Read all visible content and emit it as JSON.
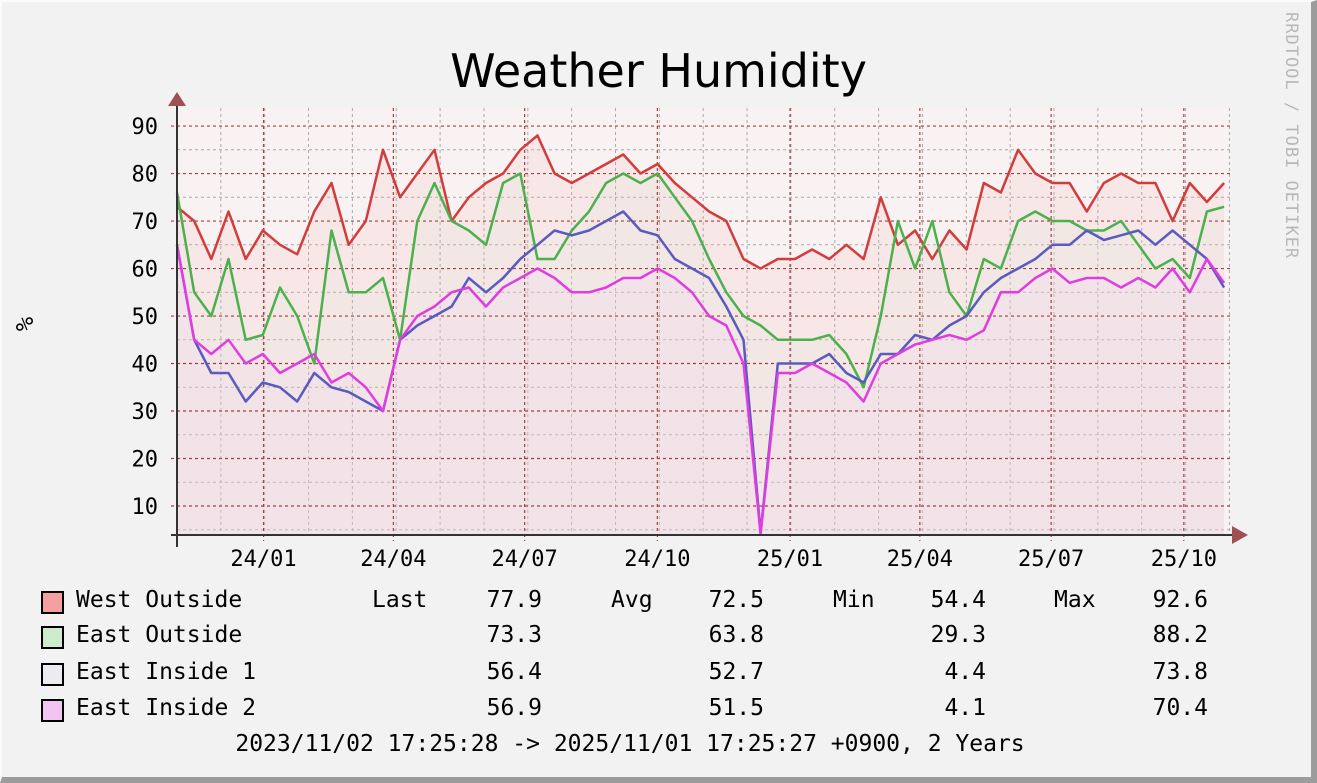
{
  "chart_data": {
    "type": "line",
    "title": "Weather Humidity",
    "ylabel": "%",
    "xlabel": "",
    "watermark": "RRDTOOL / TOBI OETIKER",
    "ylim": [
      3.9,
      93.8
    ],
    "yticks": [
      10,
      20,
      30,
      40,
      50,
      60,
      70,
      80,
      90
    ],
    "ytick_labels": [
      "10",
      "20",
      "30",
      "40",
      "50",
      "60",
      "70",
      "80",
      "90"
    ],
    "x_range_days": [
      0,
      730
    ],
    "xticks_days": [
      60,
      150,
      241,
      333,
      425,
      515,
      606,
      698
    ],
    "xtick_labels": [
      "24/01",
      "24/04",
      "24/07",
      "24/10",
      "25/01",
      "25/04",
      "25/07",
      "25/10"
    ],
    "grid": true,
    "x_sample_step_days": 11.9,
    "series": [
      {
        "name": "West Outside",
        "color": "#d23c3c",
        "swatch": "#f4a0a0",
        "values": [
          73,
          70,
          62,
          72,
          62,
          68,
          65,
          63,
          72,
          78,
          65,
          70,
          85,
          75,
          80,
          85,
          70,
          75,
          78,
          80,
          85,
          88,
          80,
          78,
          80,
          82,
          84,
          80,
          82,
          78,
          75,
          72,
          70,
          62,
          60,
          62,
          62,
          64,
          62,
          65,
          62,
          75,
          65,
          68,
          62,
          68,
          64,
          78,
          76,
          85,
          80,
          78,
          78,
          72,
          78,
          80,
          78,
          78,
          70,
          78,
          74,
          78
        ],
        "last": "77.9",
        "avg": "72.5",
        "min": "54.4",
        "max": "92.6"
      },
      {
        "name": "East Outside",
        "color": "#4cb04c",
        "swatch": "#cdeacd",
        "values": [
          76,
          55,
          50,
          62,
          45,
          46,
          56,
          50,
          40,
          68,
          55,
          55,
          58,
          45,
          70,
          78,
          70,
          68,
          65,
          78,
          80,
          62,
          62,
          68,
          72,
          78,
          80,
          78,
          80,
          75,
          70,
          62,
          55,
          50,
          48,
          45,
          45,
          45,
          46,
          42,
          35,
          50,
          70,
          60,
          70,
          55,
          50,
          62,
          60,
          70,
          72,
          70,
          70,
          68,
          68,
          70,
          65,
          60,
          62,
          58,
          72,
          73
        ],
        "last": "73.3",
        "avg": "63.8",
        "min": "29.3",
        "max": "88.2"
      },
      {
        "name": "East Inside 1",
        "color": "#5a5abf",
        "swatch": "#ebebf1",
        "values": [
          65,
          45,
          38,
          38,
          32,
          36,
          35,
          32,
          38,
          35,
          34,
          32,
          30,
          45,
          48,
          50,
          52,
          58,
          55,
          58,
          62,
          65,
          68,
          67,
          68,
          70,
          72,
          68,
          67,
          62,
          60,
          58,
          52,
          45,
          4.4,
          40,
          40,
          40,
          42,
          38,
          36,
          42,
          42,
          46,
          45,
          48,
          50,
          55,
          58,
          60,
          62,
          65,
          65,
          68,
          66,
          67,
          68,
          65,
          68,
          65,
          62,
          56
        ],
        "last": "56.4",
        "avg": "52.7",
        "min": "4.4",
        "max": "73.8"
      },
      {
        "name": "East Inside 2",
        "color": "#e03de0",
        "swatch": "#f3c3f3",
        "values": [
          65,
          45,
          42,
          45,
          40,
          42,
          38,
          40,
          42,
          36,
          38,
          35,
          30,
          45,
          50,
          52,
          55,
          56,
          52,
          56,
          58,
          60,
          58,
          55,
          55,
          56,
          58,
          58,
          60,
          58,
          55,
          50,
          48,
          40,
          4.1,
          38,
          38,
          40,
          38,
          36,
          32,
          40,
          42,
          44,
          45,
          46,
          45,
          47,
          55,
          55,
          58,
          60,
          57,
          58,
          58,
          56,
          58,
          56,
          60,
          55,
          62,
          57
        ],
        "last": "56.9",
        "avg": "51.5",
        "min": "4.1",
        "max": "70.4"
      }
    ]
  },
  "legend": {
    "last_label": "Last",
    "avg_label": "Avg",
    "min_label": "Min",
    "max_label": "Max"
  },
  "footer": "2023/11/02 17:25:28 -> 2025/11/01 17:25:27 +0900, 2 Years"
}
